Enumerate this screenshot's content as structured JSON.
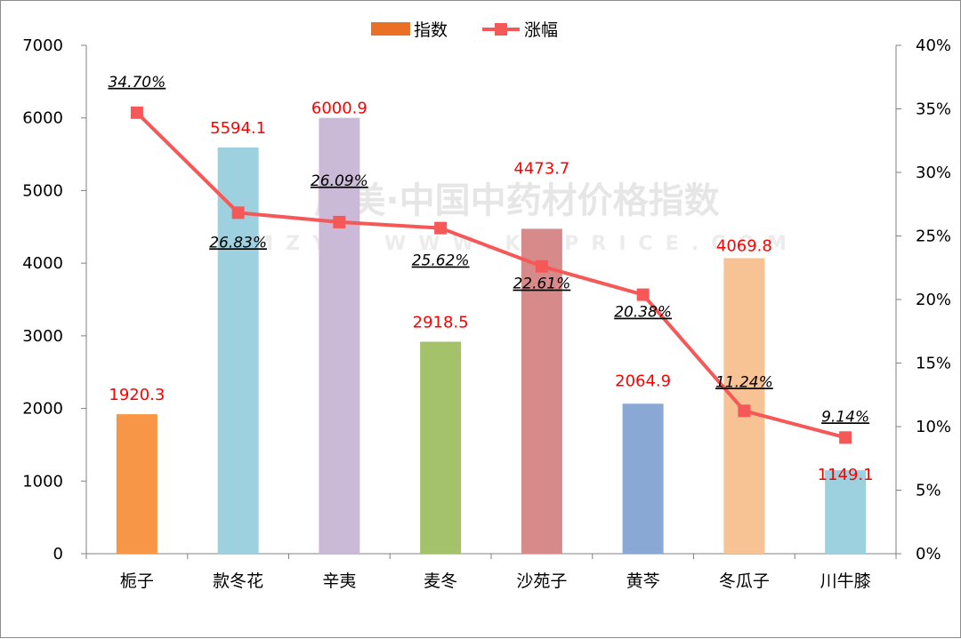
{
  "chart_data": {
    "type": "bar",
    "categories": [
      "栀子",
      "款冬花",
      "辛夷",
      "麦冬",
      "沙苑子",
      "黄芩",
      "冬瓜子",
      "川牛膝"
    ],
    "series": [
      {
        "name": "指数",
        "type": "bar",
        "axis": "left",
        "values": [
          1920.3,
          5594.1,
          6000.9,
          2918.5,
          4473.7,
          2064.9,
          4069.8,
          1149.1
        ],
        "value_labels": [
          "1920.3",
          "5594.1",
          "6000.9",
          "2918.5",
          "4473.7",
          "2064.9",
          "4069.8",
          "1149.1"
        ],
        "colors": [
          "#f79646",
          "#9dd1df",
          "#cbbad7",
          "#a3c26a",
          "#d78a8a",
          "#89a8d4",
          "#f8c394",
          "#9dd1df"
        ]
      },
      {
        "name": "涨幅",
        "type": "line",
        "axis": "right",
        "values": [
          34.7,
          26.83,
          26.09,
          25.62,
          22.61,
          20.38,
          11.24,
          9.14
        ],
        "value_labels": [
          "34.70%",
          "26.83%",
          "26.09%",
          "25.62%",
          "22.61%",
          "20.38%",
          "11.24%",
          "9.14%"
        ],
        "color": "#f65858"
      }
    ],
    "y_left": {
      "range": [
        0,
        7000
      ],
      "ticks": [
        0,
        1000,
        2000,
        3000,
        4000,
        5000,
        6000,
        7000
      ],
      "tick_labels": [
        "0",
        "1000",
        "2000",
        "3000",
        "4000",
        "5000",
        "6000",
        "7000"
      ]
    },
    "y_right": {
      "range": [
        0,
        40
      ],
      "ticks": [
        0,
        5,
        10,
        15,
        20,
        25,
        30,
        35,
        40
      ],
      "tick_labels": [
        "0%",
        "5%",
        "10%",
        "15%",
        "20%",
        "25%",
        "30%",
        "35%",
        "40%"
      ]
    },
    "grid": false,
    "legend": {
      "position": "top-center",
      "entries": [
        "指数",
        "涨幅"
      ],
      "colors": [
        "#e97024",
        "#f65858"
      ]
    },
    "watermark": {
      "line1": "康美·中国中药材价格指数",
      "line2": "KMZYC WWW.KMPRICE.COM"
    }
  }
}
